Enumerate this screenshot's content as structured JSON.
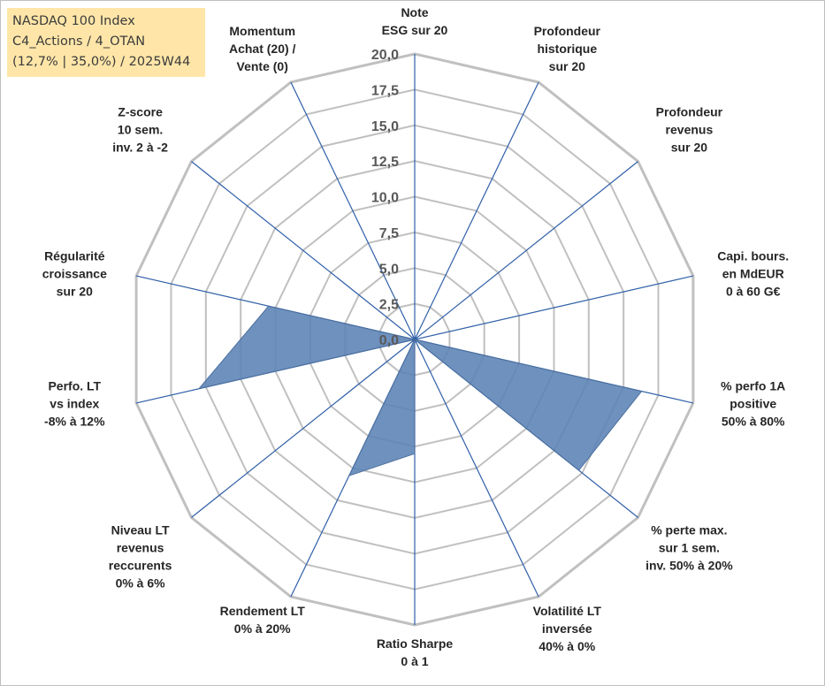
{
  "legend_box": {
    "line1": "NASDAQ 100 Index",
    "line2": "C4_Actions / 4_OTAN",
    "line3": "(12,7% | 35,0%) / 2025W44"
  },
  "chart_data": {
    "type": "radar",
    "title": "",
    "rmin": 0,
    "rmax": 20,
    "tick_values": [
      0,
      2.5,
      5,
      7.5,
      10,
      12.5,
      15,
      17.5,
      20
    ],
    "tick_labels": [
      "0,0",
      "2,5",
      "5,0",
      "7,5",
      "10,0",
      "12,5",
      "15,0",
      "17,5",
      "20,0"
    ],
    "axes": [
      [
        "Note",
        "ESG sur 20"
      ],
      [
        "Profondeur",
        "historique",
        "sur 20"
      ],
      [
        "Profondeur",
        "revenus",
        "sur 20"
      ],
      [
        "Capi. bours.",
        "en MdEUR",
        "0 à 60 G€"
      ],
      [
        "% perfo 1A",
        "positive",
        "50% à 80%"
      ],
      [
        "% perte max.",
        "sur 1 sem.",
        "inv. 50% à 20%"
      ],
      [
        "Volatilité LT",
        "inversée",
        "40% à 0%"
      ],
      [
        "Ratio Sharpe",
        "0 à 1"
      ],
      [
        "Rendement LT",
        "0% à 20%"
      ],
      [
        "Niveau LT",
        "revenus",
        "reccurents",
        "0% à 6%"
      ],
      [
        "Perfo. LT",
        "vs index",
        "-8% à 12%"
      ],
      [
        "Régularité",
        "croissance",
        "sur 20"
      ],
      [
        "Z-score",
        "10 sem.",
        "inv. 2 à -2"
      ],
      [
        "Momentum",
        "Achat (20) /",
        "Vente (0)"
      ]
    ],
    "series": [
      {
        "name": "NASDAQ 100 Index",
        "color": "#5b82b5",
        "values": [
          0,
          0,
          0,
          0,
          16.3,
          14.7,
          0,
          8.0,
          10.6,
          0,
          15.5,
          10.5,
          0,
          0
        ]
      }
    ],
    "grid_color": "#c0c0c0",
    "spoke_color": "#2f5fa8"
  }
}
